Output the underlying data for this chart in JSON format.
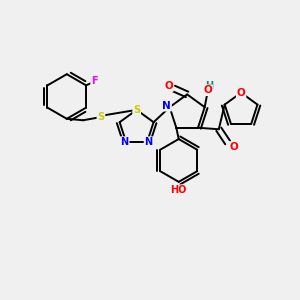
{
  "background_color": "#F0F0F0",
  "atom_colors": {
    "C": "#000000",
    "N": "#0000FF",
    "O": "#FF0000",
    "S": "#CCCC00",
    "F": "#FF00FF",
    "H": "#008B8B"
  },
  "layout": {
    "xlim": [
      0,
      10
    ],
    "ylim": [
      0,
      10
    ],
    "figsize": [
      3.0,
      3.0
    ],
    "dpi": 100
  }
}
